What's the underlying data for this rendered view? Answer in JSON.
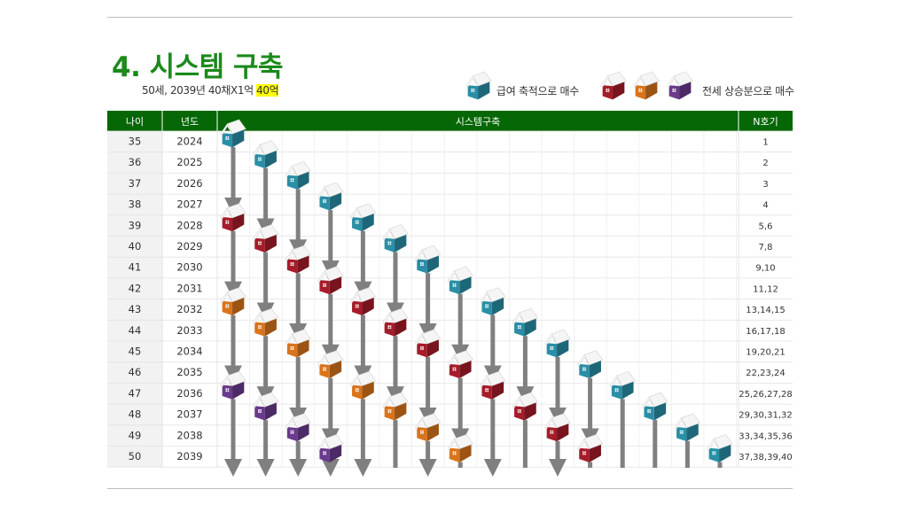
{
  "title": "4. 시스템 구축",
  "subtitle": {
    "text": "50세, 2039년 40채X1억 ",
    "highlight": "40억"
  },
  "legend": {
    "salary_label": "급여 축적으로 매수",
    "jeonse_label": "전세 상승분으로 매수",
    "salary_icon": "house-teal-icon",
    "jeonse_icons": [
      "house-red-icon",
      "house-orange-icon",
      "house-purple-icon"
    ]
  },
  "colors": {
    "header_bg": "#056705",
    "title": "#1b8a1b",
    "teal": "#2a8fa6",
    "red": "#a51c2a",
    "orange": "#d9741c",
    "purple": "#6a3a8c",
    "arrow": "#808080"
  },
  "table": {
    "headers": {
      "age": "나이",
      "year": "년도",
      "system": "시스템구축",
      "nth": "N호기"
    },
    "rows": [
      {
        "age": "35",
        "year": "2024",
        "nth": "1"
      },
      {
        "age": "36",
        "year": "2025",
        "nth": "2"
      },
      {
        "age": "37",
        "year": "2026",
        "nth": "3"
      },
      {
        "age": "38",
        "year": "2027",
        "nth": "4"
      },
      {
        "age": "39",
        "year": "2028",
        "nth": "5,6"
      },
      {
        "age": "40",
        "year": "2029",
        "nth": "7,8"
      },
      {
        "age": "41",
        "year": "2030",
        "nth": "9,10"
      },
      {
        "age": "42",
        "year": "2031",
        "nth": "11,12"
      },
      {
        "age": "43",
        "year": "2032",
        "nth": "13,14,15"
      },
      {
        "age": "44",
        "year": "2033",
        "nth": "16,17,18"
      },
      {
        "age": "45",
        "year": "2034",
        "nth": "19,20,21"
      },
      {
        "age": "46",
        "year": "2035",
        "nth": "22,23,24"
      },
      {
        "age": "47",
        "year": "2036",
        "nth": "25,26,27,28"
      },
      {
        "age": "48",
        "year": "2037",
        "nth": "29,30,31,32"
      },
      {
        "age": "49",
        "year": "2038",
        "nth": "33,34,35,36"
      },
      {
        "age": "50",
        "year": "2039",
        "nth": "37,38,39,40"
      }
    ]
  }
}
